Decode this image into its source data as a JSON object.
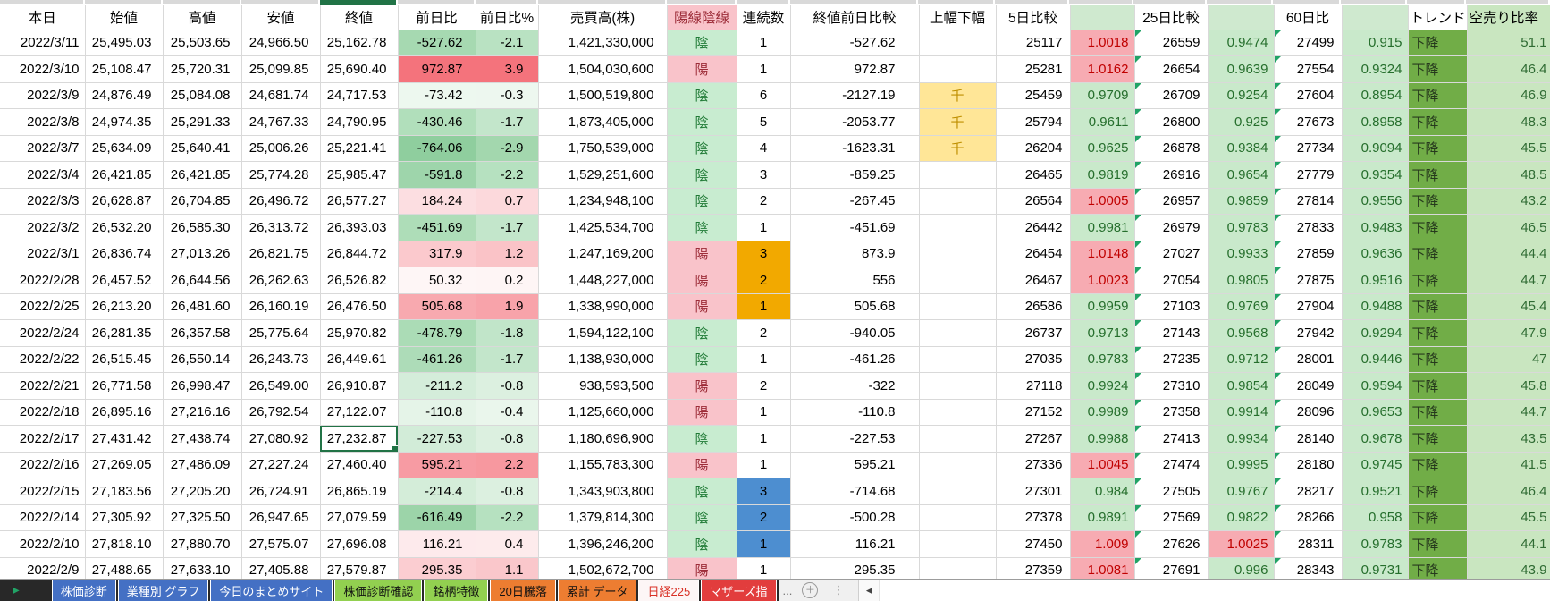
{
  "sheet": {
    "columns": [
      {
        "key": "date",
        "label": "本日"
      },
      {
        "key": "open",
        "label": "始値"
      },
      {
        "key": "high",
        "label": "高値"
      },
      {
        "key": "low",
        "label": "安値"
      },
      {
        "key": "close",
        "label": "終値"
      },
      {
        "key": "chg",
        "label": "前日比"
      },
      {
        "key": "pct",
        "label": "前日比%"
      },
      {
        "key": "volume",
        "label": "売買高(株)"
      },
      {
        "key": "candle",
        "label": "陽線陰線"
      },
      {
        "key": "streak",
        "label": "連続数"
      },
      {
        "key": "close_diff",
        "label": "終値前日比較"
      },
      {
        "key": "range",
        "label": "上幅下幅"
      },
      {
        "key": "d5",
        "label": "5日比較"
      },
      {
        "key": "d5r",
        "label": ""
      },
      {
        "key": "d25",
        "label": "25日比較"
      },
      {
        "key": "d25r",
        "label": ""
      },
      {
        "key": "d60",
        "label": "60日比"
      },
      {
        "key": "d60r",
        "label": ""
      },
      {
        "key": "trend",
        "label": "トレンド"
      },
      {
        "key": "short",
        "label": "空売り比率"
      }
    ],
    "rows": [
      {
        "date": "2022/3/11",
        "open": "25,495.03",
        "high": "25,503.65",
        "low": "24,966.50",
        "close": "25,162.78",
        "chg": "-527.62",
        "chg_bg": "#a6d9b1",
        "pct": "-2.1",
        "pct_bg": "#b9e2c2",
        "volume": "1,421,330,000",
        "candle": "陰",
        "streak": "1",
        "streak_hl": "",
        "close_diff": "-527.62",
        "range": "",
        "d5": "25117",
        "d5r": "1.0018",
        "d25": "26559",
        "d25r": "0.9474",
        "d60": "27499",
        "d60r": "0.915",
        "trend": "下降",
        "short": "51.1"
      },
      {
        "date": "2022/3/10",
        "open": "25,108.47",
        "high": "25,720.31",
        "low": "25,099.85",
        "close": "25,690.40",
        "chg": "972.87",
        "chg_bg": "#f4737c",
        "pct": "3.9",
        "pct_bg": "#f4737c",
        "volume": "1,504,030,600",
        "candle": "陽",
        "streak": "1",
        "streak_hl": "",
        "close_diff": "972.87",
        "range": "",
        "d5": "25281",
        "d5r": "1.0162",
        "d25": "26654",
        "d25r": "0.9639",
        "d60": "27554",
        "d60r": "0.9324",
        "trend": "下降",
        "short": "46.4"
      },
      {
        "date": "2022/3/9",
        "open": "24,876.49",
        "high": "25,084.08",
        "low": "24,681.74",
        "close": "24,717.53",
        "chg": "-73.42",
        "chg_bg": "#edf8ef",
        "pct": "-0.3",
        "pct_bg": "#edf7ef",
        "volume": "1,500,519,800",
        "candle": "陰",
        "streak": "6",
        "streak_hl": "",
        "close_diff": "-2127.19",
        "range": "千",
        "d5": "25459",
        "d5r": "0.9709",
        "d25": "26709",
        "d25r": "0.9254",
        "d60": "27604",
        "d60r": "0.8954",
        "trend": "下降",
        "short": "46.9"
      },
      {
        "date": "2022/3/8",
        "open": "24,974.35",
        "high": "25,291.33",
        "low": "24,767.33",
        "close": "24,790.95",
        "chg": "-430.46",
        "chg_bg": "#b1dfbb",
        "pct": "-1.7",
        "pct_bg": "#c3e6cb",
        "volume": "1,873,405,000",
        "candle": "陰",
        "streak": "5",
        "streak_hl": "",
        "close_diff": "-2053.77",
        "range": "千",
        "d5": "25794",
        "d5r": "0.9611",
        "d25": "26800",
        "d25r": "0.925",
        "d60": "27673",
        "d60r": "0.8958",
        "trend": "下降",
        "short": "48.3"
      },
      {
        "date": "2022/3/7",
        "open": "25,634.09",
        "high": "25,640.41",
        "low": "25,006.26",
        "close": "25,221.41",
        "chg": "-764.06",
        "chg_bg": "#8fce9e",
        "pct": "-2.9",
        "pct_bg": "#a3d7ae",
        "volume": "1,750,539,000",
        "candle": "陰",
        "streak": "4",
        "streak_hl": "",
        "close_diff": "-1623.31",
        "range": "千",
        "d5": "26204",
        "d5r": "0.9625",
        "d25": "26878",
        "d25r": "0.9384",
        "d60": "27734",
        "d60r": "0.9094",
        "trend": "下降",
        "short": "45.5"
      },
      {
        "date": "2022/3/4",
        "open": "26,421.85",
        "high": "26,421.85",
        "low": "25,774.28",
        "close": "25,985.47",
        "chg": "-591.8",
        "chg_bg": "#9ed5ab",
        "pct": "-2.2",
        "pct_bg": "#b6e1c0",
        "volume": "1,529,251,600",
        "candle": "陰",
        "streak": "3",
        "streak_hl": "",
        "close_diff": "-859.25",
        "range": "",
        "d5": "26465",
        "d5r": "0.9819",
        "d25": "26916",
        "d25r": "0.9654",
        "d60": "27779",
        "d60r": "0.9354",
        "trend": "下降",
        "short": "48.5"
      },
      {
        "date": "2022/3/3",
        "open": "26,628.87",
        "high": "26,704.85",
        "low": "26,496.72",
        "close": "26,577.27",
        "chg": "184.24",
        "chg_bg": "#fcdee1",
        "pct": "0.7",
        "pct_bg": "#fcd9dc",
        "volume": "1,234,948,100",
        "candle": "陰",
        "streak": "2",
        "streak_hl": "",
        "close_diff": "-267.45",
        "range": "",
        "d5": "26564",
        "d5r": "1.0005",
        "d25": "26957",
        "d25r": "0.9859",
        "d60": "27814",
        "d60r": "0.9556",
        "trend": "下降",
        "short": "43.2"
      },
      {
        "date": "2022/3/2",
        "open": "26,532.20",
        "high": "26,585.30",
        "low": "26,313.72",
        "close": "26,393.03",
        "chg": "-451.69",
        "chg_bg": "#aeddb8",
        "pct": "-1.7",
        "pct_bg": "#c3e6cb",
        "volume": "1,425,534,700",
        "candle": "陰",
        "streak": "1",
        "streak_hl": "",
        "close_diff": "-451.69",
        "range": "",
        "d5": "26442",
        "d5r": "0.9981",
        "d25": "26979",
        "d25r": "0.9783",
        "d60": "27833",
        "d60r": "0.9483",
        "trend": "下降",
        "short": "46.5"
      },
      {
        "date": "2022/3/1",
        "open": "26,836.74",
        "high": "27,013.26",
        "low": "26,821.75",
        "close": "26,844.72",
        "chg": "317.9",
        "chg_bg": "#fbc9cd",
        "pct": "1.2",
        "pct_bg": "#fac3c7",
        "volume": "1,247,169,200",
        "candle": "陽",
        "streak": "3",
        "streak_hl": "orange",
        "close_diff": "873.9",
        "range": "",
        "d5": "26454",
        "d5r": "1.0148",
        "d25": "27027",
        "d25r": "0.9933",
        "d60": "27859",
        "d60r": "0.9636",
        "trend": "下降",
        "short": "44.4"
      },
      {
        "date": "2022/2/28",
        "open": "26,457.52",
        "high": "26,644.56",
        "low": "26,262.63",
        "close": "26,526.82",
        "chg": "50.32",
        "chg_bg": "#fef6f6",
        "pct": "0.2",
        "pct_bg": "#fef5f5",
        "volume": "1,448,227,000",
        "candle": "陽",
        "streak": "2",
        "streak_hl": "orange",
        "close_diff": "556",
        "range": "",
        "d5": "26467",
        "d5r": "1.0023",
        "d25": "27054",
        "d25r": "0.9805",
        "d60": "27875",
        "d60r": "0.9516",
        "trend": "下降",
        "short": "44.7"
      },
      {
        "date": "2022/2/25",
        "open": "26,213.20",
        "high": "26,481.60",
        "low": "26,160.19",
        "close": "26,476.50",
        "chg": "505.68",
        "chg_bg": "#f8a9af",
        "pct": "1.9",
        "pct_bg": "#f8a3aa",
        "volume": "1,338,990,000",
        "candle": "陽",
        "streak": "1",
        "streak_hl": "orange",
        "close_diff": "505.68",
        "range": "",
        "d5": "26586",
        "d5r": "0.9959",
        "d25": "27103",
        "d25r": "0.9769",
        "d60": "27904",
        "d60r": "0.9488",
        "trend": "下降",
        "short": "45.4"
      },
      {
        "date": "2022/2/24",
        "open": "26,281.35",
        "high": "26,357.58",
        "low": "25,775.64",
        "close": "25,970.82",
        "chg": "-478.79",
        "chg_bg": "#abdcb6",
        "pct": "-1.8",
        "pct_bg": "#c1e5c9",
        "volume": "1,594,122,100",
        "candle": "陰",
        "streak": "2",
        "streak_hl": "",
        "close_diff": "-940.05",
        "range": "",
        "d5": "26737",
        "d5r": "0.9713",
        "d25": "27143",
        "d25r": "0.9568",
        "d60": "27942",
        "d60r": "0.9294",
        "trend": "下降",
        "short": "47.9"
      },
      {
        "date": "2022/2/22",
        "open": "26,515.45",
        "high": "26,550.14",
        "low": "26,243.73",
        "close": "26,449.61",
        "chg": "-461.26",
        "chg_bg": "#addcb8",
        "pct": "-1.7",
        "pct_bg": "#c3e6cb",
        "volume": "1,138,930,000",
        "candle": "陰",
        "streak": "1",
        "streak_hl": "",
        "close_diff": "-461.26",
        "range": "",
        "d5": "27035",
        "d5r": "0.9783",
        "d25": "27235",
        "d25r": "0.9712",
        "d60": "28001",
        "d60r": "0.9446",
        "trend": "下降",
        "short": "47"
      },
      {
        "date": "2022/2/21",
        "open": "26,771.58",
        "high": "26,998.47",
        "low": "26,549.00",
        "close": "26,910.87",
        "chg": "-211.2",
        "chg_bg": "#d4edda",
        "pct": "-0.8",
        "pct_bg": "#dcf0e0",
        "volume": "938,593,500",
        "candle": "陽",
        "streak": "2",
        "streak_hl": "",
        "close_diff": "-322",
        "range": "",
        "d5": "27118",
        "d5r": "0.9924",
        "d25": "27310",
        "d25r": "0.9854",
        "d60": "28049",
        "d60r": "0.9594",
        "trend": "下降",
        "short": "45.8"
      },
      {
        "date": "2022/2/18",
        "open": "26,895.16",
        "high": "27,216.16",
        "low": "26,792.54",
        "close": "27,122.07",
        "chg": "-110.8",
        "chg_bg": "#e5f4e8",
        "pct": "-0.4",
        "pct_bg": "#eaf6ec",
        "volume": "1,125,660,000",
        "candle": "陽",
        "streak": "1",
        "streak_hl": "",
        "close_diff": "-110.8",
        "range": "",
        "d5": "27152",
        "d5r": "0.9989",
        "d25": "27358",
        "d25r": "0.9914",
        "d60": "28096",
        "d60r": "0.9653",
        "trend": "下降",
        "short": "44.7"
      },
      {
        "date": "2022/2/17",
        "open": "27,431.42",
        "high": "27,438.74",
        "low": "27,080.92",
        "close": "27,232.87",
        "chg": "-227.53",
        "chg_bg": "#d2ecd8",
        "pct": "-0.8",
        "pct_bg": "#dcf0e0",
        "volume": "1,180,696,900",
        "candle": "陰",
        "streak": "1",
        "streak_hl": "",
        "close_diff": "-227.53",
        "range": "",
        "d5": "27267",
        "d5r": "0.9988",
        "d25": "27413",
        "d25r": "0.9934",
        "d60": "28140",
        "d60r": "0.9678",
        "trend": "下降",
        "short": "43.5"
      },
      {
        "date": "2022/2/16",
        "open": "27,269.05",
        "high": "27,486.09",
        "low": "27,227.24",
        "close": "27,460.40",
        "chg": "595.21",
        "chg_bg": "#f79ba3",
        "pct": "2.2",
        "pct_bg": "#f7989f",
        "volume": "1,155,783,300",
        "candle": "陽",
        "streak": "1",
        "streak_hl": "",
        "close_diff": "595.21",
        "range": "",
        "d5": "27336",
        "d5r": "1.0045",
        "d25": "27474",
        "d25r": "0.9995",
        "d60": "28180",
        "d60r": "0.9745",
        "trend": "下降",
        "short": "41.5"
      },
      {
        "date": "2022/2/15",
        "open": "27,183.56",
        "high": "27,205.20",
        "low": "26,724.91",
        "close": "26,865.19",
        "chg": "-214.4",
        "chg_bg": "#d4edd9",
        "pct": "-0.8",
        "pct_bg": "#dcf0e0",
        "volume": "1,343,903,800",
        "candle": "陰",
        "streak": "3",
        "streak_hl": "blue",
        "close_diff": "-714.68",
        "range": "",
        "d5": "27301",
        "d5r": "0.984",
        "d25": "27505",
        "d25r": "0.9767",
        "d60": "28217",
        "d60r": "0.9521",
        "trend": "下降",
        "short": "46.4"
      },
      {
        "date": "2022/2/14",
        "open": "27,305.92",
        "high": "27,325.50",
        "low": "26,947.65",
        "close": "27,079.59",
        "chg": "-616.49",
        "chg_bg": "#9cd4a9",
        "pct": "-2.2",
        "pct_bg": "#b6e1c0",
        "volume": "1,379,814,300",
        "candle": "陰",
        "streak": "2",
        "streak_hl": "blue",
        "close_diff": "-500.28",
        "range": "",
        "d5": "27378",
        "d5r": "0.9891",
        "d25": "27569",
        "d25r": "0.9822",
        "d60": "28266",
        "d60r": "0.958",
        "trend": "下降",
        "short": "45.5"
      },
      {
        "date": "2022/2/10",
        "open": "27,818.10",
        "high": "27,880.70",
        "low": "27,575.07",
        "close": "27,696.08",
        "chg": "116.21",
        "chg_bg": "#fdeaec",
        "pct": "0.4",
        "pct_bg": "#fdebec",
        "volume": "1,396,246,200",
        "candle": "陰",
        "streak": "1",
        "streak_hl": "blue",
        "close_diff": "116.21",
        "range": "",
        "d5": "27450",
        "d5r": "1.009",
        "d25": "27626",
        "d25r": "1.0025",
        "d60": "28311",
        "d60r": "0.9783",
        "trend": "下降",
        "short": "44.1"
      },
      {
        "date": "2022/2/9",
        "open": "27,488.65",
        "high": "27,633.10",
        "low": "27,405.88",
        "close": "27,579.87",
        "chg": "295.35",
        "chg_bg": "#fbcdd1",
        "pct": "1.1",
        "pct_bg": "#fac7cb",
        "volume": "1,502,672,700",
        "candle": "陽",
        "streak": "1",
        "streak_hl": "",
        "close_diff": "295.35",
        "range": "",
        "d5": "27359",
        "d5r": "1.0081",
        "d25": "27691",
        "d25r": "0.996",
        "d60": "28343",
        "d60r": "0.9731",
        "trend": "下降",
        "short": "43.9"
      }
    ],
    "selection": {
      "row_index": 15,
      "column": "close"
    }
  },
  "tabbar": {
    "nav_arrow": "▶",
    "tabs": [
      {
        "label": "株価診断",
        "color": "blue"
      },
      {
        "label": "業種別 グラフ",
        "color": "blue"
      },
      {
        "label": "今日のまとめサイト",
        "color": "blue"
      },
      {
        "label": "株価診断確認",
        "color": "green"
      },
      {
        "label": "銘柄特徴",
        "color": "green"
      },
      {
        "label": "20日騰落",
        "color": "orange"
      },
      {
        "label": "累計 データ",
        "color": "orange"
      },
      {
        "label": "日経225",
        "color": "active"
      },
      {
        "label": "マザーズ指",
        "color": "red"
      }
    ],
    "overflow_ellipsis": "...",
    "add_sheet_icon": "＋",
    "more_icon": "⋮",
    "scroll_left_icon": "◀"
  },
  "colors": {
    "selection_green": "#217346",
    "candle_bull_bg": "#f9c3ca",
    "candle_bull_text": "#9c2c38",
    "candle_bear_bg": "#c8ecd0",
    "candle_bear_text": "#1f7a35",
    "ratio_up_bg": "#f7abb2",
    "ratio_up_text": "#c00000",
    "ratio_down_bg": "#c9e9cb",
    "ratio_down_text": "#256e2c",
    "streak_up_bg": "#f2a900",
    "streak_down_bg": "#4d8ed0",
    "range_bg": "#ffe697",
    "range_text": "#bf8f00",
    "trend_bg": "#71ad47",
    "trend_text": "#26391d",
    "short_bg": "#c9e6c0",
    "short_text": "#2f6b33",
    "error_triangle": "#21a366"
  }
}
